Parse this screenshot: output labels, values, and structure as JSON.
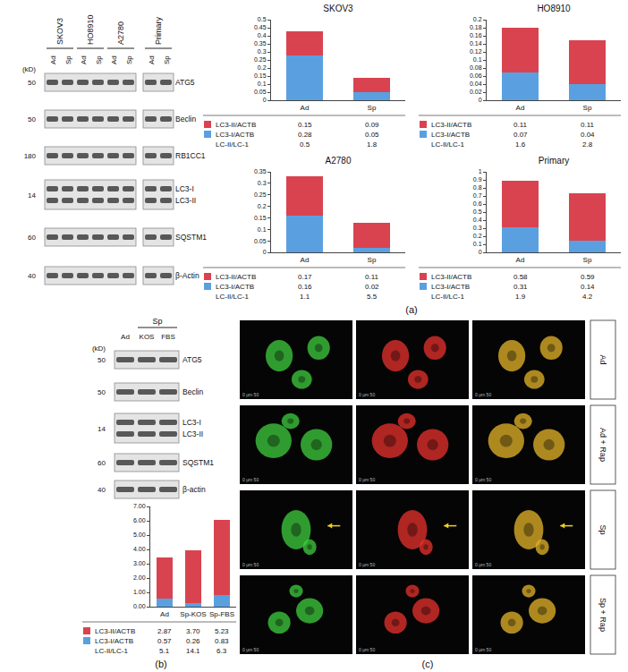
{
  "panel_labels": [
    "(a)",
    "(b)",
    "(c)"
  ],
  "chart_data": [
    {
      "type": "bar",
      "stacked": true,
      "grid": false,
      "title": "SKOV3",
      "categories": [
        "Ad",
        "Sp"
      ],
      "series": [
        {
          "name": "LC3-II/ACTB",
          "color": "#d9434f",
          "values": [
            0.15,
            0.09
          ]
        },
        {
          "name": "LC3-I/ACTB",
          "color": "#5aa0e0",
          "values": [
            0.28,
            0.05
          ]
        }
      ],
      "table_row": {
        "name": "LC-II/LC-1",
        "values": [
          0.5,
          1.8
        ]
      },
      "ylim": [
        0,
        0.5
      ],
      "yticks": [
        0,
        0.05,
        0.1,
        0.15,
        0.2,
        0.25,
        0.3,
        0.35,
        0.4,
        0.45,
        0.5
      ]
    },
    {
      "type": "bar",
      "stacked": true,
      "grid": false,
      "title": "HO8910",
      "categories": [
        "Ad",
        "Sp"
      ],
      "series": [
        {
          "name": "LC3-II/ACTB",
          "color": "#d9434f",
          "values": [
            0.11,
            0.11
          ]
        },
        {
          "name": "LC3-I/ACTB",
          "color": "#5aa0e0",
          "values": [
            0.07,
            0.04
          ]
        }
      ],
      "table_row": {
        "name": "LC-II/LC-1",
        "values": [
          1.6,
          2.8
        ]
      },
      "ylim": [
        0,
        0.2
      ],
      "yticks": [
        0,
        0.02,
        0.04,
        0.06,
        0.08,
        0.1,
        0.12,
        0.14,
        0.16,
        0.18,
        0.2
      ]
    },
    {
      "type": "bar",
      "stacked": true,
      "grid": false,
      "title": "A2780",
      "categories": [
        "Ad",
        "Sp"
      ],
      "series": [
        {
          "name": "LC3-II/ACTB",
          "color": "#d9434f",
          "values": [
            0.17,
            0.11
          ]
        },
        {
          "name": "LC3-I/ACTB",
          "color": "#5aa0e0",
          "values": [
            0.16,
            0.02
          ]
        }
      ],
      "table_row": {
        "name": "LC-II/LC-1",
        "values": [
          1.1,
          5.5
        ]
      },
      "ylim": [
        0,
        0.35
      ],
      "yticks": [
        0,
        0.05,
        0.1,
        0.15,
        0.2,
        0.25,
        0.3,
        0.35
      ]
    },
    {
      "type": "bar",
      "stacked": true,
      "grid": false,
      "title": "Primary",
      "categories": [
        "Ad",
        "Sp"
      ],
      "series": [
        {
          "name": "LC3-II/ACTB",
          "color": "#d9434f",
          "values": [
            0.58,
            0.59
          ]
        },
        {
          "name": "LC3-I/ACTB",
          "color": "#5aa0e0",
          "values": [
            0.31,
            0.14
          ]
        }
      ],
      "table_row": {
        "name": "LC-II/LC-1",
        "values": [
          1.9,
          4.2
        ]
      },
      "ylim": [
        0,
        1
      ],
      "yticks": [
        0,
        0.1,
        0.2,
        0.3,
        0.4,
        0.5,
        0.6,
        0.7,
        0.8,
        0.9,
        1
      ]
    },
    {
      "type": "bar",
      "stacked": true,
      "grid": false,
      "categories": [
        "Ad",
        "Sp-KOS",
        "Sp-FBS"
      ],
      "series": [
        {
          "name": "LC3-II/ACTB",
          "color": "#d9434f",
          "values": [
            2.87,
            3.7,
            5.23
          ],
          "value_labels": [
            "2.87",
            "3.70",
            "5.23"
          ]
        },
        {
          "name": "LC3-I/ACTB",
          "color": "#5aa0e0",
          "values": [
            0.57,
            0.26,
            0.83
          ]
        }
      ],
      "table_row": {
        "name": "LC-II/LC-1",
        "values": [
          5.1,
          14.1,
          6.3
        ]
      },
      "ylim": [
        0,
        7
      ],
      "yticks": [
        {
          "value": 0,
          "label": "0.00"
        },
        {
          "value": 1,
          "label": "1.00"
        },
        {
          "value": 2,
          "label": "2.00"
        },
        {
          "value": 3,
          "label": "3.00"
        },
        {
          "value": 4,
          "label": "4.00"
        },
        {
          "value": 5,
          "label": "5.00"
        },
        {
          "value": 6,
          "label": "6.00"
        },
        {
          "value": 7,
          "label": "7.00"
        }
      ]
    }
  ],
  "blot_a": {
    "unit": "(kD)",
    "groups": [
      {
        "label": "SKOV3",
        "lanes": [
          "Ad",
          "Sp"
        ]
      },
      {
        "label": "HO8910",
        "lanes": [
          "Ad",
          "Sp"
        ]
      },
      {
        "label": "A2780",
        "lanes": [
          "Ad",
          "Sp"
        ]
      },
      {
        "label": "Primary",
        "lanes": [
          "Ad",
          "Sp"
        ]
      }
    ],
    "rows": [
      {
        "marker": 50,
        "labels": [
          "ATG5"
        ]
      },
      {
        "marker": 50,
        "labels": [
          "Beclin"
        ]
      },
      {
        "marker": 180,
        "labels": [
          "RB1CC1"
        ]
      },
      {
        "marker": 14,
        "labels": [
          "LC3-I",
          "LC3-II"
        ]
      },
      {
        "marker": 60,
        "labels": [
          "SQSTM1"
        ]
      },
      {
        "marker": 40,
        "labels": [
          "β-Actin"
        ]
      }
    ]
  },
  "blot_b": {
    "unit": "(kD)",
    "groups": [
      {
        "lanes": [
          "Ad"
        ]
      },
      {
        "label": "Sp",
        "lanes": [
          "KOS",
          "FBS"
        ]
      }
    ],
    "rows": [
      {
        "marker": 50,
        "labels": [
          "ATG5"
        ]
      },
      {
        "marker": 50,
        "labels": [
          "Beclin"
        ]
      },
      {
        "marker": 14,
        "labels": [
          "LC3-I",
          "LC3-II"
        ]
      },
      {
        "marker": 60,
        "labels": [
          "SQSTM1"
        ]
      },
      {
        "marker": 40,
        "labels": [
          "β-actin"
        ]
      }
    ]
  },
  "images_c": {
    "rows": [
      "Ad",
      "Ad + Rap",
      "Sp",
      "Sp + Rap"
    ],
    "scale_label": "0 μm 50"
  }
}
